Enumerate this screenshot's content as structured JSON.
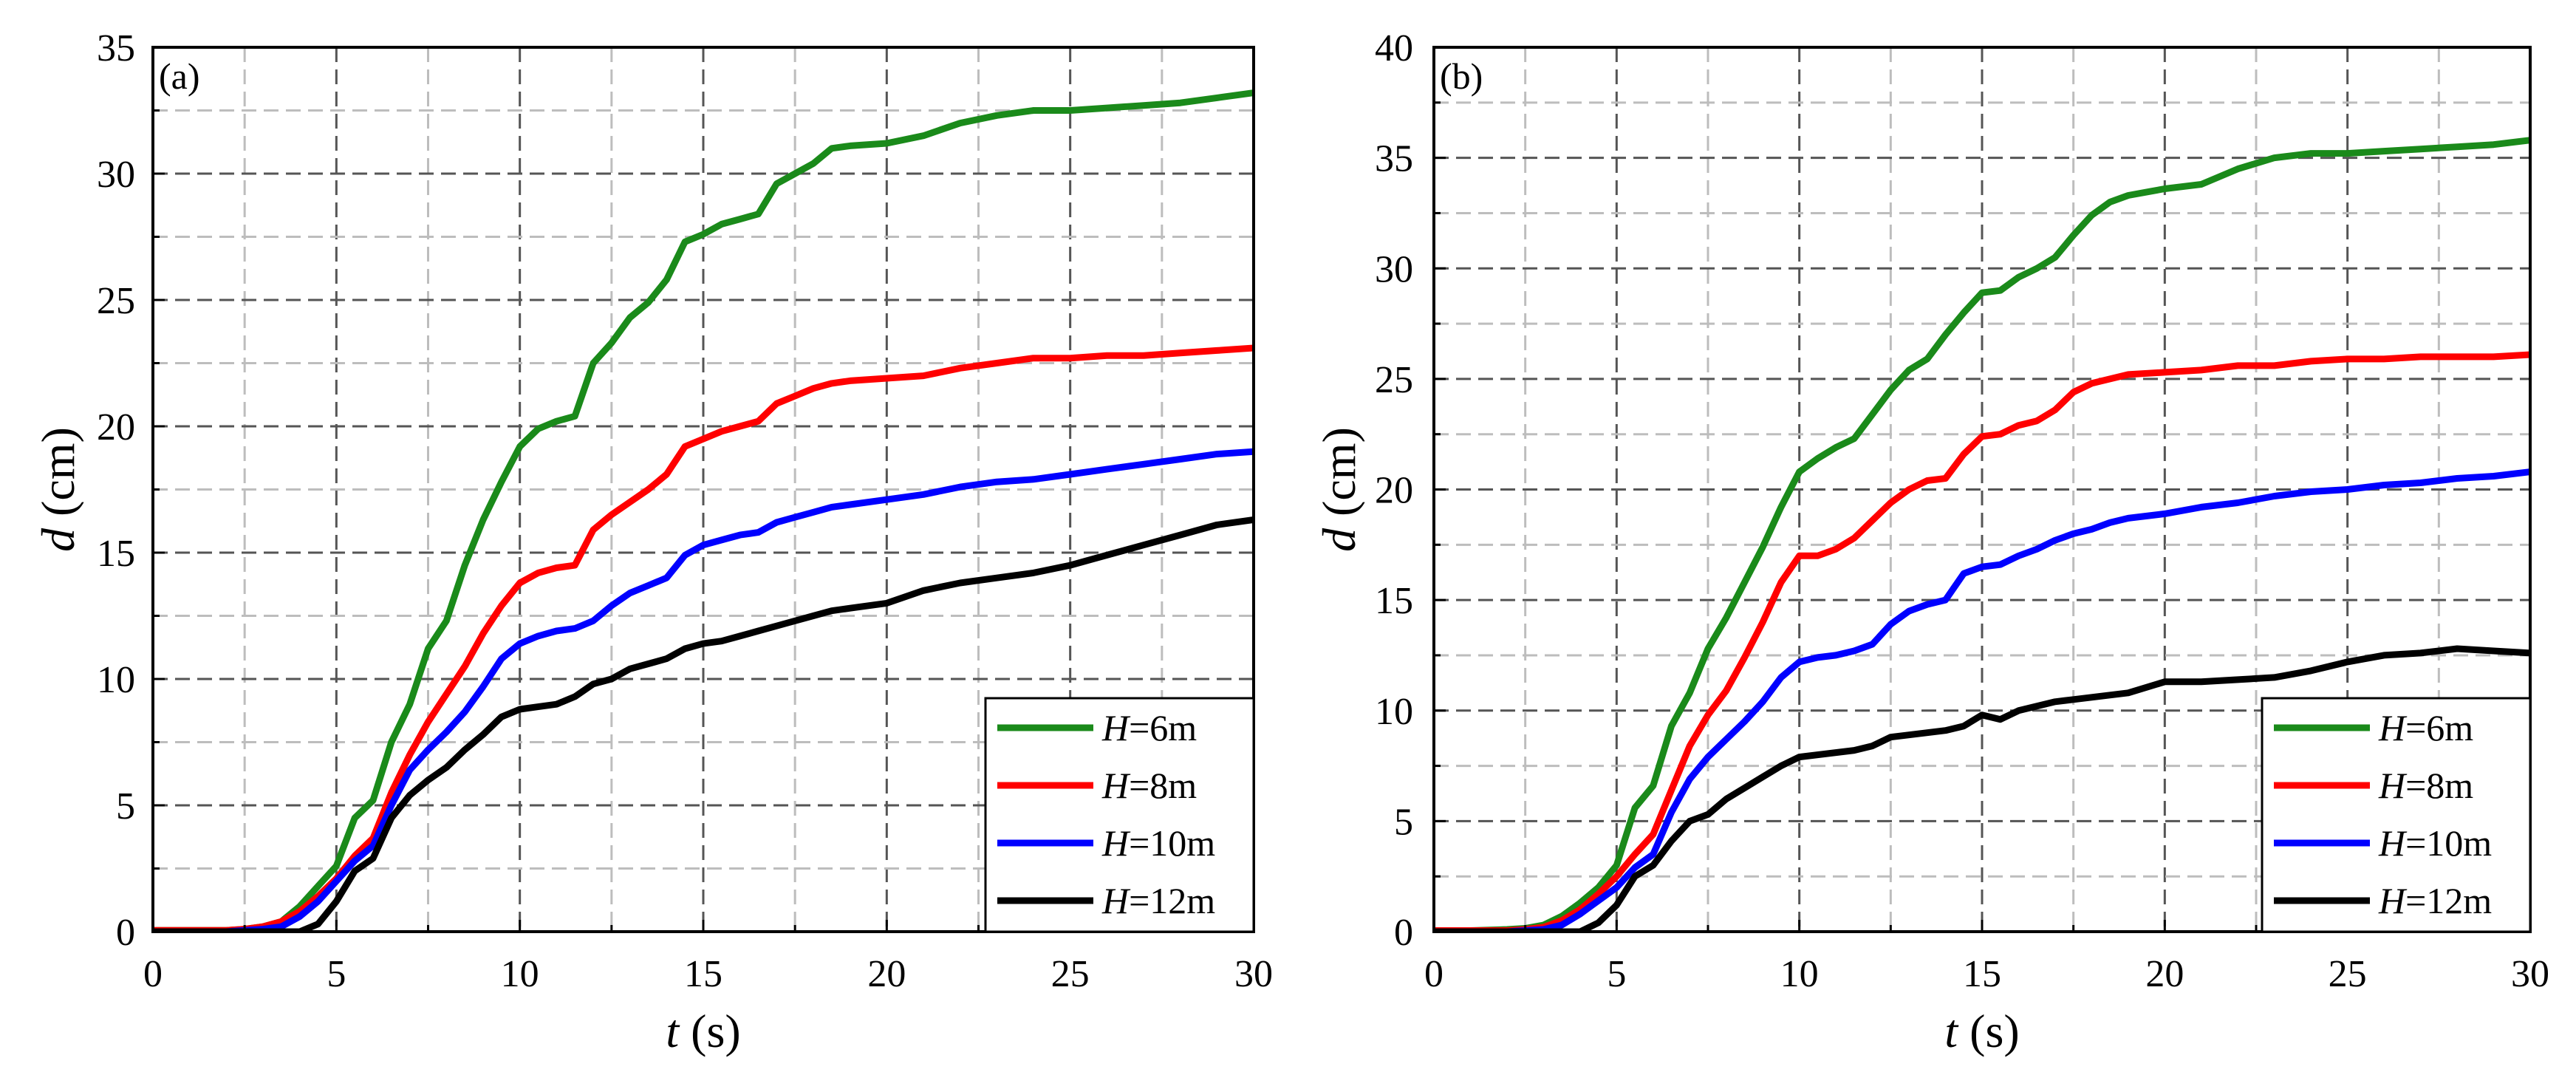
{
  "chart_data": [
    {
      "type": "line",
      "panel_label": "(a)",
      "xlabel": "t (s)",
      "ylabel": "d (cm)",
      "xlim": [
        0,
        30
      ],
      "ylim": [
        0,
        35
      ],
      "xticks": [
        0,
        5,
        10,
        15,
        20,
        25,
        30
      ],
      "yticks": [
        0,
        5,
        10,
        15,
        20,
        25,
        30,
        35
      ],
      "minor_step_x": 2.5,
      "minor_step_y": 2.5,
      "grid": true,
      "legend_position": "bottom-right",
      "x": [
        0,
        1,
        2,
        2.5,
        3,
        3.5,
        4,
        4.5,
        5,
        5.5,
        6,
        6.5,
        7,
        7.5,
        8,
        8.5,
        9,
        9.5,
        10,
        10.5,
        11,
        11.5,
        12,
        12.5,
        13,
        13.5,
        14,
        14.5,
        15,
        15.5,
        16,
        16.5,
        17,
        17.5,
        18,
        18.5,
        19,
        20,
        21,
        22,
        23,
        24,
        25,
        26,
        27,
        28,
        29,
        30
      ],
      "series": [
        {
          "name": "H=6m",
          "color": "#1a8a1a",
          "values": [
            0.05,
            0.05,
            0.05,
            0.1,
            0.2,
            0.4,
            1.0,
            1.8,
            2.6,
            4.5,
            5.2,
            7.5,
            9.0,
            11.2,
            12.3,
            14.5,
            16.3,
            17.8,
            19.2,
            19.9,
            20.2,
            20.4,
            22.5,
            23.3,
            24.3,
            24.9,
            25.8,
            27.3,
            27.6,
            28.0,
            28.2,
            28.4,
            29.6,
            30.0,
            30.4,
            31.0,
            31.1,
            31.2,
            31.5,
            32.0,
            32.3,
            32.5,
            32.5,
            32.6,
            32.7,
            32.8,
            33.0,
            33.2
          ]
        },
        {
          "name": "H=8m",
          "color": "#ff0000",
          "values": [
            0.05,
            0.05,
            0.05,
            0.1,
            0.2,
            0.4,
            0.8,
            1.4,
            2.1,
            3.0,
            3.7,
            5.5,
            7.0,
            8.3,
            9.4,
            10.5,
            11.8,
            12.9,
            13.8,
            14.2,
            14.4,
            14.5,
            15.9,
            16.5,
            17.0,
            17.5,
            18.1,
            19.2,
            19.5,
            19.8,
            20.0,
            20.2,
            20.9,
            21.2,
            21.5,
            21.7,
            21.8,
            21.9,
            22.0,
            22.3,
            22.5,
            22.7,
            22.7,
            22.8,
            22.8,
            22.9,
            23.0,
            23.1
          ]
        },
        {
          "name": "H=10m",
          "color": "#0000ff",
          "values": [
            0,
            0,
            0,
            0.05,
            0.1,
            0.2,
            0.6,
            1.2,
            2.0,
            2.8,
            3.4,
            5.0,
            6.4,
            7.2,
            7.9,
            8.7,
            9.7,
            10.8,
            11.4,
            11.7,
            11.9,
            12.0,
            12.3,
            12.9,
            13.4,
            13.7,
            14.0,
            14.9,
            15.3,
            15.5,
            15.7,
            15.8,
            16.2,
            16.4,
            16.6,
            16.8,
            16.9,
            17.1,
            17.3,
            17.6,
            17.8,
            17.9,
            18.1,
            18.3,
            18.5,
            18.7,
            18.9,
            19.0
          ]
        },
        {
          "name": "H=12m",
          "color": "#000000",
          "values": [
            0,
            0,
            0,
            0,
            0,
            0,
            0,
            0.3,
            1.2,
            2.4,
            2.9,
            4.5,
            5.4,
            6.0,
            6.5,
            7.2,
            7.8,
            8.5,
            8.8,
            8.9,
            9.0,
            9.3,
            9.8,
            10.0,
            10.4,
            10.6,
            10.8,
            11.2,
            11.4,
            11.5,
            11.7,
            11.9,
            12.1,
            12.3,
            12.5,
            12.7,
            12.8,
            13.0,
            13.5,
            13.8,
            14.0,
            14.2,
            14.5,
            14.9,
            15.3,
            15.7,
            16.1,
            16.3
          ]
        }
      ]
    },
    {
      "type": "line",
      "panel_label": "(b)",
      "xlabel": "t (s)",
      "ylabel": "d (cm)",
      "xlim": [
        0,
        30
      ],
      "ylim": [
        0,
        40
      ],
      "xticks": [
        0,
        5,
        10,
        15,
        20,
        25,
        30
      ],
      "yticks": [
        0,
        5,
        10,
        15,
        20,
        25,
        30,
        35,
        40
      ],
      "minor_step_x": 2.5,
      "minor_step_y": 2.5,
      "grid": true,
      "legend_position": "bottom-right",
      "x": [
        0,
        1,
        2,
        2.5,
        3,
        3.5,
        4,
        4.5,
        5,
        5.5,
        6,
        6.5,
        7,
        7.5,
        8,
        8.5,
        9,
        9.5,
        10,
        10.5,
        11,
        11.5,
        12,
        12.5,
        13,
        13.5,
        14,
        14.5,
        15,
        15.5,
        16,
        16.5,
        17,
        17.5,
        18,
        18.5,
        19,
        20,
        21,
        22,
        23,
        24,
        25,
        26,
        27,
        28,
        29,
        30
      ],
      "series": [
        {
          "name": "H=6m",
          "color": "#1a8a1a",
          "values": [
            0.05,
            0.05,
            0.1,
            0.15,
            0.3,
            0.7,
            1.3,
            2.0,
            3.0,
            5.6,
            6.6,
            9.3,
            10.8,
            12.8,
            14.2,
            15.8,
            17.4,
            19.2,
            20.8,
            21.4,
            21.9,
            22.3,
            23.4,
            24.5,
            25.4,
            25.9,
            27.0,
            28.0,
            28.9,
            29.0,
            29.6,
            30.0,
            30.5,
            31.5,
            32.4,
            33.0,
            33.3,
            33.6,
            33.8,
            34.5,
            35.0,
            35.2,
            35.2,
            35.3,
            35.4,
            35.5,
            35.6,
            35.8
          ]
        },
        {
          "name": "H=8m",
          "color": "#ff0000",
          "values": [
            0.05,
            0.05,
            0.05,
            0.1,
            0.2,
            0.5,
            1.0,
            1.7,
            2.5,
            3.5,
            4.4,
            6.4,
            8.4,
            9.8,
            10.9,
            12.4,
            14.0,
            15.8,
            17.0,
            17.0,
            17.3,
            17.8,
            18.6,
            19.4,
            20.0,
            20.4,
            20.5,
            21.6,
            22.4,
            22.5,
            22.9,
            23.1,
            23.6,
            24.4,
            24.8,
            25.0,
            25.2,
            25.3,
            25.4,
            25.6,
            25.6,
            25.8,
            25.9,
            25.9,
            26.0,
            26.0,
            26.0,
            26.1
          ]
        },
        {
          "name": "H=10m",
          "color": "#0000ff",
          "values": [
            0,
            0,
            0,
            0.05,
            0.1,
            0.3,
            0.8,
            1.4,
            2.0,
            2.9,
            3.5,
            5.4,
            6.9,
            7.9,
            8.7,
            9.5,
            10.4,
            11.5,
            12.2,
            12.4,
            12.5,
            12.7,
            13.0,
            13.9,
            14.5,
            14.8,
            15.0,
            16.2,
            16.5,
            16.6,
            17.0,
            17.3,
            17.7,
            18.0,
            18.2,
            18.5,
            18.7,
            18.9,
            19.2,
            19.4,
            19.7,
            19.9,
            20.0,
            20.2,
            20.3,
            20.5,
            20.6,
            20.8
          ]
        },
        {
          "name": "H=12m",
          "color": "#000000",
          "values": [
            0,
            0,
            0,
            0,
            0,
            0,
            0,
            0.4,
            1.2,
            2.5,
            3.0,
            4.1,
            5.0,
            5.3,
            6.0,
            6.5,
            7.0,
            7.5,
            7.9,
            8.0,
            8.1,
            8.2,
            8.4,
            8.8,
            8.9,
            9.0,
            9.1,
            9.3,
            9.8,
            9.6,
            10.0,
            10.2,
            10.4,
            10.5,
            10.6,
            10.7,
            10.8,
            11.3,
            11.3,
            11.4,
            11.5,
            11.8,
            12.2,
            12.5,
            12.6,
            12.8,
            12.7,
            12.6
          ]
        }
      ]
    }
  ]
}
